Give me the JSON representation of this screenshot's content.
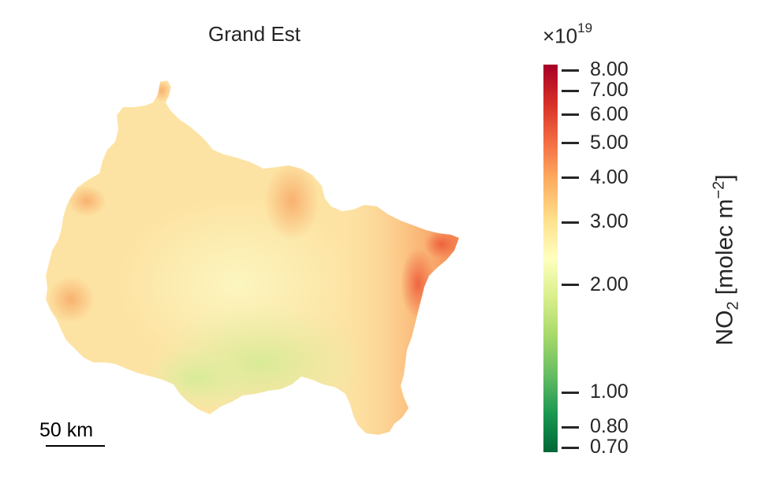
{
  "map": {
    "title": "Grand Est"
  },
  "scalebar": {
    "label": "50 km"
  },
  "colorbar": {
    "multiplier_base": "×10",
    "multiplier_exponent": "19",
    "label_main": "NO",
    "label_sub": "2",
    "label_units": " [molec m",
    "label_sup": "−2",
    "label_close": "]",
    "scale": "log",
    "range": [
      0.68,
      8.3
    ],
    "colormap": "RdYlGn_r",
    "colors": [
      "#006837",
      "#1a9850",
      "#66bd63",
      "#a6d96a",
      "#d9ef8b",
      "#ffffbf",
      "#fee08b",
      "#fdae61",
      "#f46d43",
      "#d73027",
      "#a50026"
    ],
    "ticks": [
      {
        "value": 8.0,
        "label": "8.00"
      },
      {
        "value": 7.0,
        "label": "7.00"
      },
      {
        "value": 6.0,
        "label": "6.00"
      },
      {
        "value": 5.0,
        "label": "5.00"
      },
      {
        "value": 4.0,
        "label": "4.00"
      },
      {
        "value": 3.0,
        "label": "3.00"
      },
      {
        "value": 2.0,
        "label": "2.00"
      },
      {
        "value": 1.0,
        "label": "1.00"
      },
      {
        "value": 0.8,
        "label": "0.80"
      },
      {
        "value": 0.7,
        "label": "0.70"
      }
    ]
  }
}
